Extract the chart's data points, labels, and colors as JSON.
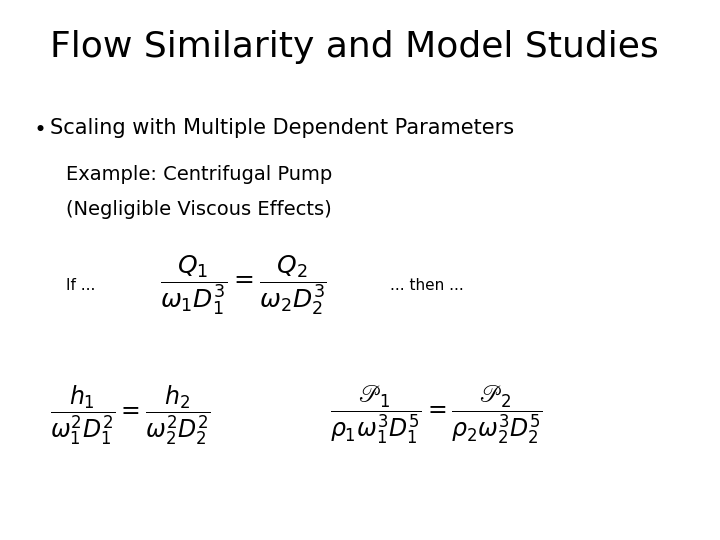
{
  "title": "Flow Similarity and Model Studies",
  "bullet": "Scaling with Multiple Dependent Parameters",
  "example_line1": "Example: Centrifugal Pump",
  "example_line2": "(Negligible Viscous Effects)",
  "if_label": "If ...",
  "then_label": "... then ...",
  "background_color": "#ffffff",
  "text_color": "#000000",
  "title_fontsize": 26,
  "bullet_fontsize": 15,
  "example_fontsize": 14,
  "eq_fontsize": 16,
  "label_fontsize": 11
}
